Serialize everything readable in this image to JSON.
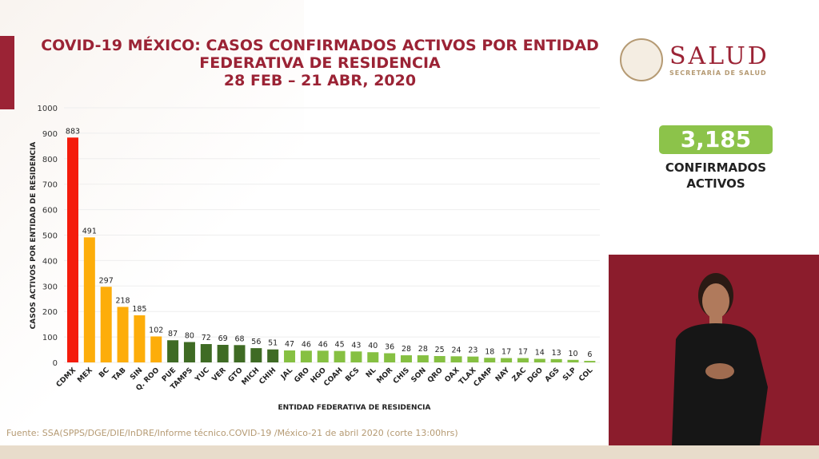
{
  "header": {
    "title_line1": "COVID-19 MÉXICO: CASOS CONFIRMADOS ACTIVOS POR ENTIDAD",
    "title_line2": "FEDERATIVA DE RESIDENCIA",
    "title_line3": "28 FEB – 21 ABR, 2020"
  },
  "logo": {
    "name": "SALUD",
    "subtitle": "SECRETARÍA DE SALUD"
  },
  "total": {
    "value": "3,185",
    "label_line1": "CONFIRMADOS",
    "label_line2": "ACTIVOS"
  },
  "footer": "Fuente: SSA(SPPS/DGE/DIE/InDRE/Informe técnico.COVID-19 /México-21 de abril 2020 (corte 13:00hrs)",
  "chart_data": {
    "type": "bar",
    "title": "COVID-19 MÉXICO: CASOS CONFIRMADOS ACTIVOS POR ENTIDAD FEDERATIVA DE RESIDENCIA",
    "xlabel": "ENTIDAD FEDERATIVA DE RESIDENCIA",
    "ylabel": "CASOS  ACTIVOS  POR ENTIDAD DE RESIDENCIA",
    "ylim": [
      0,
      1000
    ],
    "yticks": [
      0,
      100,
      200,
      300,
      400,
      500,
      600,
      700,
      800,
      900,
      1000
    ],
    "grid": true,
    "categories": [
      "CDMX",
      "MEX",
      "BC",
      "TAB",
      "SIN",
      "Q. ROO",
      "PUE",
      "TAMPS",
      "YUC",
      "VER",
      "GTO",
      "MICH",
      "CHIH",
      "JAL",
      "GRO",
      "HGO",
      "COAH",
      "BCS",
      "NL",
      "MOR",
      "CHIS",
      "SON",
      "QRO",
      "OAX",
      "TLAX",
      "CAMP",
      "NAY",
      "ZAC",
      "DGO",
      "AGS",
      "SLP",
      "COL"
    ],
    "values": [
      883,
      491,
      297,
      218,
      185,
      102,
      87,
      80,
      72,
      69,
      68,
      56,
      51,
      47,
      46,
      46,
      45,
      43,
      40,
      36,
      28,
      28,
      25,
      24,
      23,
      18,
      17,
      17,
      14,
      13,
      10,
      6
    ],
    "colors": {
      "high": "#f41c0c",
      "mid": "#fdad0a",
      "low": "#3f6b24",
      "lowest": "#86c042"
    }
  }
}
